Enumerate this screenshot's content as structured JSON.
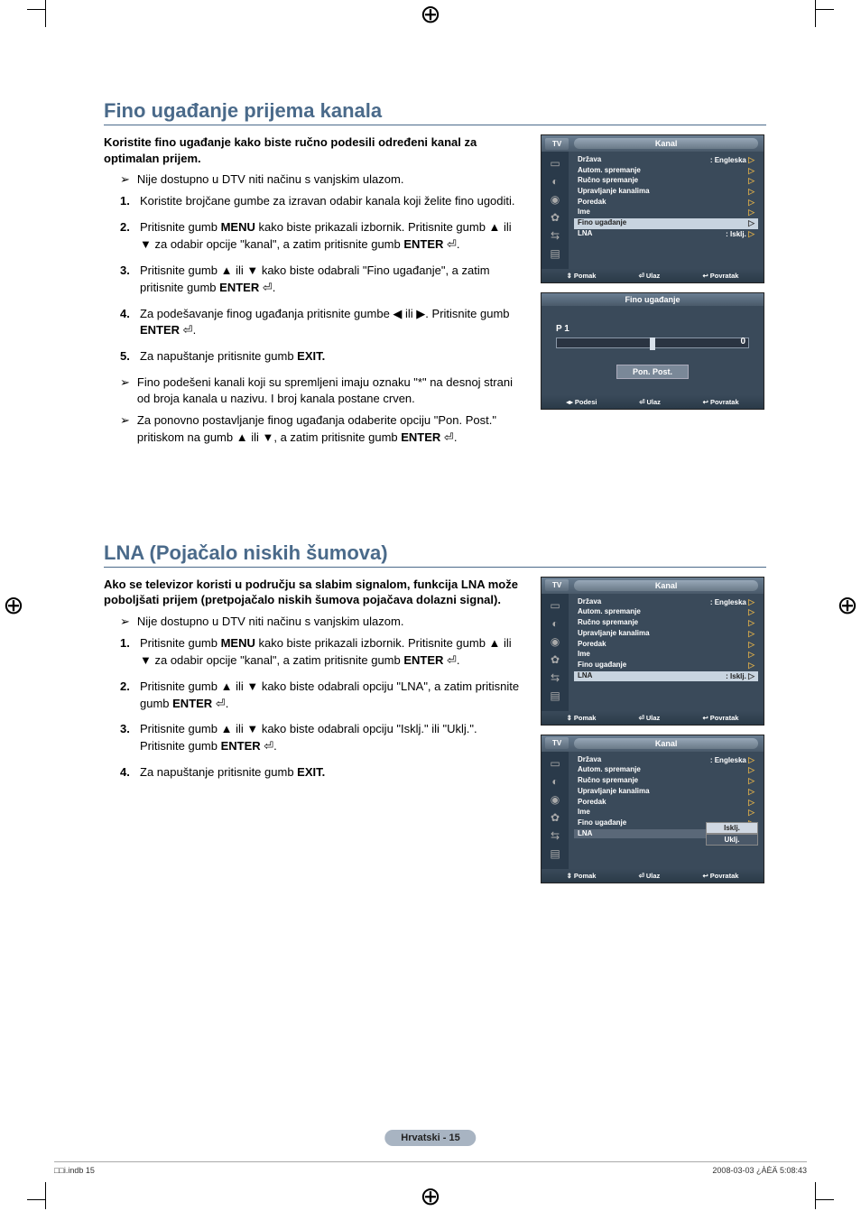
{
  "section1": {
    "title": "Fino ugađanje prijema kanala",
    "intro": "Koristite fino ugađanje kako biste ručno podesili određeni kanal za optimalan prijem.",
    "note1": "Nije dostupno u DTV niti načinu s vanjskim ulazom.",
    "steps": {
      "s1": "Koristite brojčane gumbe za izravan odabir kanala koji želite fino ugoditi.",
      "s2a": "Pritisnite gumb ",
      "s2b": "MENU",
      "s2c": " kako biste prikazali izbornik. Pritisnite gumb ▲ ili ▼ za odabir opcije \"kanal\", a zatim pritisnite gumb ",
      "s2d": "ENTER",
      "s2e": " ⏎.",
      "s3a": "Pritisnite gumb ▲ ili ▼ kako biste odabrali \"Fino ugađanje\", a zatim pritisnite gumb ",
      "s3b": "ENTER",
      "s3c": " ⏎.",
      "s4a": "Za podešavanje finog ugađanja pritisnite gumbe ◀ ili ▶. Pritisnite gumb ",
      "s4b": "ENTER",
      "s4c": " ⏎.",
      "s5a": "Za napuštanje pritisnite gumb ",
      "s5b": "EXIT."
    },
    "note2": "Fino podešeni kanali koji su spremljeni imaju oznaku \"*\" na desnoj strani od broja kanala u nazivu. I broj kanala postane crven.",
    "note3a": "Za ponovno postavljanje finog ugađanja odaberite opciju \"Pon. Post.\" pritiskom na gumb ▲ ili ▼, a zatim pritisnite gumb ",
    "note3b": "ENTER",
    "note3c": " ⏎."
  },
  "section2": {
    "title": "LNA (Pojačalo niskih šumova)",
    "intro": "Ako se televizor koristi u području sa slabim signalom, funkcija LNA može poboljšati prijem (pretpojačalo niskih šumova pojačava dolazni signal).",
    "note1": "Nije dostupno u DTV niti načinu s vanjskim ulazom.",
    "steps": {
      "s1a": "Pritisnite gumb ",
      "s1b": "MENU",
      "s1c": " kako biste prikazali izbornik. Pritisnite gumb ▲ ili ▼ za odabir opcije \"kanal\", a zatim pritisnite gumb ",
      "s1d": "ENTER",
      "s1e": " ⏎.",
      "s2a": "Pritisnite gumb ▲ ili ▼ kako biste odabrali opciju \"LNA\", a zatim pritisnite gumb ",
      "s2b": "ENTER",
      "s2c": " ⏎.",
      "s3a": "Pritisnite gumb ▲ ili ▼ kako biste odabrali opciju \"Isklj.\" ili \"Uklj.\". Pritisnite gumb ",
      "s3b": "ENTER",
      "s3c": " ⏎.",
      "s4a": "Za napuštanje pritisnite gumb ",
      "s4b": "EXIT."
    }
  },
  "tvmenu": {
    "tab": "TV",
    "title": "Kanal",
    "items": {
      "drzava": "Država",
      "drzava_val": ": Engleska",
      "autom": "Autom. spremanje",
      "rucno": "Ručno spremanje",
      "upravljanje": "Upravljanje kanalima",
      "poredak": "Poredak",
      "ime": "Ime",
      "fino": "Fino ugađanje",
      "lna": "LNA",
      "lna_val": ": Isklj."
    },
    "footer": {
      "pomak": "Pomak",
      "ulaz": "Ulaz",
      "povratak": "Povratak",
      "podesi": "Podesi"
    }
  },
  "finetune": {
    "title": "Fino ugađanje",
    "channel": "P 1",
    "value": "0",
    "reset": "Pon. Post."
  },
  "lna_opts": {
    "off": "Isklj.",
    "on": "Uklj."
  },
  "page_badge": "Hrvatski - 15",
  "footer_left": "□□i.indb   15",
  "footer_right": "2008-03-03   ¿ÀÈÄ 5:08:43"
}
